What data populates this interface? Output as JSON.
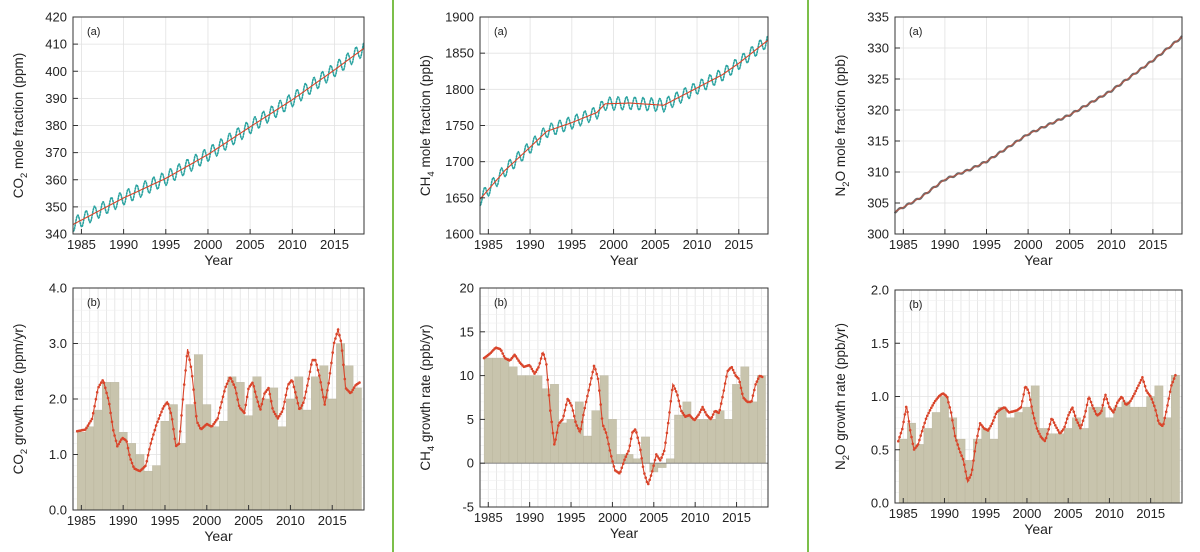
{
  "colors": {
    "divider": "#7cbf4a",
    "monthly": "#2aa3a0",
    "trend": "#d9452b",
    "bar": "#c8c4ad",
    "bar_edge": "#b7b29a",
    "grid": "#e2e2e2",
    "n2o_line": "#6e6e6e"
  },
  "chart_data": [
    {
      "id": "co2-a",
      "type": "line",
      "panel": "(a)",
      "xlabel": "Year",
      "ylabel_parts": [
        "CO",
        "2",
        " mole fraction (ppm)"
      ],
      "xlim": [
        1984,
        2018.5
      ],
      "ylim": [
        340,
        420
      ],
      "xticks": [
        1985,
        1990,
        1995,
        2000,
        2005,
        2010,
        2015
      ],
      "yticks": [
        340,
        350,
        360,
        370,
        380,
        390,
        400,
        410,
        420
      ],
      "trend_points": [
        [
          1984,
          343.5
        ],
        [
          1990,
          353.3
        ],
        [
          1995,
          360.5
        ],
        [
          2000,
          369.3
        ],
        [
          2005,
          379.5
        ],
        [
          2010,
          389.5
        ],
        [
          2015,
          400.5
        ],
        [
          2018.5,
          408.5
        ]
      ],
      "seasonal_amplitude": 2.6
    },
    {
      "id": "ch4-a",
      "type": "line",
      "panel": "(a)",
      "xlabel": "Year",
      "ylabel_parts": [
        "CH",
        "4",
        " mole fraction (ppb)"
      ],
      "xlim": [
        1984,
        2018.5
      ],
      "ylim": [
        1600,
        1900
      ],
      "xticks": [
        1985,
        1990,
        1995,
        2000,
        2005,
        2010,
        2015
      ],
      "yticks": [
        1600,
        1650,
        1700,
        1750,
        1800,
        1850,
        1900
      ],
      "trend_points": [
        [
          1984,
          1648
        ],
        [
          1987,
          1688
        ],
        [
          1990,
          1720
        ],
        [
          1992,
          1742
        ],
        [
          1995,
          1754
        ],
        [
          1998,
          1768
        ],
        [
          1999,
          1780
        ],
        [
          2002,
          1781
        ],
        [
          2006,
          1778
        ],
        [
          2008,
          1790
        ],
        [
          2010,
          1802
        ],
        [
          2013,
          1820
        ],
        [
          2015,
          1836
        ],
        [
          2018.5,
          1868
        ]
      ],
      "seasonal_amplitude": 9
    },
    {
      "id": "n2o-a",
      "type": "line",
      "panel": "(a)",
      "xlabel": "Year",
      "ylabel_parts": [
        "N",
        "2",
        "O mole fraction (ppb)"
      ],
      "xlim": [
        1984,
        2018.5
      ],
      "ylim": [
        300,
        335
      ],
      "xticks": [
        1985,
        1990,
        1995,
        2000,
        2005,
        2010,
        2015
      ],
      "yticks": [
        300,
        305,
        310,
        315,
        320,
        325,
        330,
        335
      ],
      "trend_points": [
        [
          1984,
          303.6
        ],
        [
          1987,
          305.8
        ],
        [
          1990,
          308.8
        ],
        [
          1993,
          310.4
        ],
        [
          1995,
          311.7
        ],
        [
          2000,
          316.1
        ],
        [
          2005,
          319.2
        ],
        [
          2010,
          323.1
        ],
        [
          2015,
          328.0
        ],
        [
          2018.5,
          331.8
        ]
      ],
      "seasonal_amplitude": 0.15
    },
    {
      "id": "co2-b",
      "type": "bar",
      "panel": "(b)",
      "xlabel": "Year",
      "ylabel_parts": [
        "CO",
        "2",
        " growth rate (ppm/yr)"
      ],
      "xlim": [
        1984,
        2018.8
      ],
      "ylim": [
        0,
        4
      ],
      "xticks": [
        1985,
        1990,
        1995,
        2000,
        2005,
        2010,
        2015
      ],
      "yticks": [
        0,
        1,
        2,
        3,
        4
      ],
      "ytick_labels": [
        "0.0",
        "1.0",
        "2.0",
        "3.0",
        "4.0"
      ],
      "years": [
        1984,
        1985,
        1986,
        1987,
        1988,
        1989,
        1990,
        1991,
        1992,
        1993,
        1994,
        1995,
        1996,
        1997,
        1998,
        1999,
        2000,
        2001,
        2002,
        2003,
        2004,
        2005,
        2006,
        2007,
        2008,
        2009,
        2010,
        2011,
        2012,
        2013,
        2014,
        2015,
        2016,
        2017
      ],
      "annual_values": [
        1.4,
        1.5,
        1.8,
        2.3,
        2.3,
        1.4,
        1.2,
        1.0,
        0.7,
        0.8,
        1.6,
        1.9,
        1.2,
        1.9,
        2.8,
        1.9,
        1.5,
        1.6,
        2.4,
        2.3,
        1.7,
        2.4,
        2.0,
        2.2,
        1.5,
        2.0,
        2.4,
        1.8,
        2.4,
        2.6,
        2.0,
        3.0,
        2.6,
        2.2
      ],
      "rate_points": [
        [
          1984.5,
          1.42
        ],
        [
          1985.5,
          1.45
        ],
        [
          1986.3,
          1.65
        ],
        [
          1987.0,
          2.2
        ],
        [
          1987.6,
          2.35
        ],
        [
          1988.3,
          1.95
        ],
        [
          1988.8,
          1.45
        ],
        [
          1989.3,
          1.15
        ],
        [
          1989.9,
          1.3
        ],
        [
          1990.4,
          1.25
        ],
        [
          1990.8,
          0.95
        ],
        [
          1991.3,
          0.75
        ],
        [
          1992.0,
          0.7
        ],
        [
          1992.7,
          0.8
        ],
        [
          1993.3,
          1.2
        ],
        [
          1994.0,
          1.55
        ],
        [
          1994.8,
          1.85
        ],
        [
          1995.3,
          1.95
        ],
        [
          1995.8,
          1.7
        ],
        [
          1996.3,
          1.15
        ],
        [
          1996.7,
          1.2
        ],
        [
          1997.2,
          2.1
        ],
        [
          1997.7,
          2.9
        ],
        [
          1998.2,
          2.5
        ],
        [
          1998.8,
          1.6
        ],
        [
          1999.3,
          1.45
        ],
        [
          2000.0,
          1.55
        ],
        [
          2000.6,
          1.5
        ],
        [
          2001.3,
          1.65
        ],
        [
          2002.2,
          2.2
        ],
        [
          2002.8,
          2.4
        ],
        [
          2003.4,
          2.2
        ],
        [
          2003.9,
          1.85
        ],
        [
          2004.5,
          1.75
        ],
        [
          2005.0,
          2.2
        ],
        [
          2005.5,
          2.3
        ],
        [
          2006.0,
          2.0
        ],
        [
          2006.4,
          1.8
        ],
        [
          2006.9,
          2.1
        ],
        [
          2007.4,
          2.2
        ],
        [
          2007.9,
          1.8
        ],
        [
          2008.5,
          1.65
        ],
        [
          2009.1,
          1.8
        ],
        [
          2009.7,
          2.25
        ],
        [
          2010.2,
          2.35
        ],
        [
          2010.7,
          2.05
        ],
        [
          2011.1,
          1.8
        ],
        [
          2011.6,
          1.95
        ],
        [
          2012.1,
          2.3
        ],
        [
          2012.6,
          2.7
        ],
        [
          2013.0,
          2.7
        ],
        [
          2013.5,
          2.4
        ],
        [
          2014.1,
          1.9
        ],
        [
          2014.6,
          2.3
        ],
        [
          2015.2,
          3.0
        ],
        [
          2015.7,
          3.25
        ],
        [
          2016.1,
          3.0
        ],
        [
          2016.6,
          2.2
        ],
        [
          2017.2,
          2.1
        ],
        [
          2017.8,
          2.25
        ],
        [
          2018.3,
          2.3
        ]
      ]
    },
    {
      "id": "ch4-b",
      "type": "bar",
      "panel": "(b)",
      "xlabel": "Year",
      "ylabel_parts": [
        "CH",
        "4",
        " growth rate (ppb/yr)"
      ],
      "xlim": [
        1984,
        2018.8
      ],
      "ylim": [
        -5,
        20
      ],
      "xticks": [
        1985,
        1990,
        1995,
        2000,
        2005,
        2010,
        2015
      ],
      "yticks": [
        -5,
        0,
        5,
        10,
        15,
        20
      ],
      "years": [
        1984,
        1985,
        1986,
        1987,
        1988,
        1989,
        1990,
        1991,
        1992,
        1993,
        1994,
        1995,
        1996,
        1997,
        1998,
        1999,
        2000,
        2001,
        2002,
        2003,
        2004,
        2005,
        2006,
        2007,
        2008,
        2009,
        2010,
        2011,
        2012,
        2013,
        2014,
        2015,
        2016,
        2017
      ],
      "annual_values": [
        12,
        12,
        12,
        11,
        10,
        10,
        10,
        8.5,
        9,
        4.6,
        5,
        7,
        3.1,
        6,
        10,
        5,
        1,
        1,
        0.5,
        3,
        -1,
        -0.5,
        0.5,
        5.5,
        7,
        5,
        5,
        5,
        6,
        5,
        9,
        11,
        7,
        10
      ],
      "rate_points": [
        [
          1984.5,
          12.0
        ],
        [
          1985.2,
          12.5
        ],
        [
          1985.9,
          13.2
        ],
        [
          1986.5,
          13.0
        ],
        [
          1987.0,
          12.0
        ],
        [
          1987.6,
          11.7
        ],
        [
          1988.2,
          12.4
        ],
        [
          1988.8,
          11.5
        ],
        [
          1989.3,
          11.0
        ],
        [
          1990.0,
          11.2
        ],
        [
          1990.6,
          10.2
        ],
        [
          1991.1,
          11.0
        ],
        [
          1991.6,
          12.7
        ],
        [
          1992.0,
          11.5
        ],
        [
          1992.5,
          6.0
        ],
        [
          1993.0,
          2.0
        ],
        [
          1993.5,
          4.5
        ],
        [
          1994.0,
          5.0
        ],
        [
          1994.6,
          7.4
        ],
        [
          1995.1,
          6.5
        ],
        [
          1995.6,
          4.5
        ],
        [
          1996.1,
          3.5
        ],
        [
          1996.7,
          6.5
        ],
        [
          1997.3,
          9.0
        ],
        [
          1997.8,
          11.2
        ],
        [
          1998.3,
          9.5
        ],
        [
          1998.8,
          4.5
        ],
        [
          1999.3,
          3.3
        ],
        [
          1999.8,
          1.0
        ],
        [
          2000.3,
          -0.8
        ],
        [
          2000.9,
          -1.2
        ],
        [
          2001.5,
          0.5
        ],
        [
          2002.0,
          1.5
        ],
        [
          2002.4,
          3.5
        ],
        [
          2002.8,
          3.9
        ],
        [
          2003.3,
          2.0
        ],
        [
          2003.8,
          -1.0
        ],
        [
          2004.3,
          -2.5
        ],
        [
          2004.8,
          -1.0
        ],
        [
          2005.3,
          1.0
        ],
        [
          2005.8,
          0.3
        ],
        [
          2006.3,
          1.5
        ],
        [
          2006.8,
          5.0
        ],
        [
          2007.3,
          9.0
        ],
        [
          2007.8,
          8.0
        ],
        [
          2008.3,
          6.0
        ],
        [
          2008.8,
          5.3
        ],
        [
          2009.3,
          5.5
        ],
        [
          2009.9,
          4.9
        ],
        [
          2010.4,
          5.5
        ],
        [
          2010.9,
          6.4
        ],
        [
          2011.4,
          5.5
        ],
        [
          2011.9,
          5.0
        ],
        [
          2012.4,
          6.0
        ],
        [
          2012.9,
          5.7
        ],
        [
          2013.4,
          8.0
        ],
        [
          2013.9,
          10.5
        ],
        [
          2014.4,
          11.0
        ],
        [
          2014.9,
          10.0
        ],
        [
          2015.3,
          9.6
        ],
        [
          2015.8,
          7.5
        ],
        [
          2016.3,
          7.0
        ],
        [
          2016.8,
          7.0
        ],
        [
          2017.3,
          9.0
        ],
        [
          2017.8,
          10.0
        ],
        [
          2018.2,
          9.8
        ]
      ]
    },
    {
      "id": "n2o-b",
      "type": "bar",
      "panel": "(b)",
      "xlabel": "Year",
      "ylabel_parts": [
        "N",
        "2",
        "O growth rate (ppb/yr)"
      ],
      "xlim": [
        1984,
        2018.8
      ],
      "ylim": [
        0,
        2
      ],
      "xticks": [
        1985,
        1990,
        1995,
        2000,
        2005,
        2010,
        2015
      ],
      "yticks": [
        0,
        0.5,
        1,
        1.5,
        2
      ],
      "ytick_labels": [
        "0.0",
        "0.5",
        "1.0",
        "1.5",
        "2.0"
      ],
      "years": [
        1984,
        1985,
        1986,
        1987,
        1988,
        1989,
        1990,
        1991,
        1992,
        1993,
        1994,
        1995,
        1996,
        1997,
        1998,
        1999,
        2000,
        2001,
        2002,
        2003,
        2004,
        2005,
        2006,
        2007,
        2008,
        2009,
        2010,
        2011,
        2012,
        2013,
        2014,
        2015,
        2016,
        2017
      ],
      "annual_values": [
        0.6,
        0.75,
        0.55,
        0.7,
        0.85,
        1.0,
        0.8,
        0.6,
        0.4,
        0.6,
        0.7,
        0.6,
        0.9,
        0.8,
        0.85,
        0.9,
        1.1,
        0.7,
        0.65,
        0.65,
        0.7,
        0.8,
        0.7,
        0.9,
        0.9,
        0.8,
        0.9,
        0.95,
        0.9,
        0.9,
        1.0,
        1.1,
        0.8,
        1.2
      ],
      "rate_points": [
        [
          1984.4,
          0.58
        ],
        [
          1984.9,
          0.7
        ],
        [
          1985.4,
          0.92
        ],
        [
          1985.8,
          0.7
        ],
        [
          1986.3,
          0.5
        ],
        [
          1986.8,
          0.55
        ],
        [
          1987.3,
          0.68
        ],
        [
          1987.8,
          0.8
        ],
        [
          1988.3,
          0.88
        ],
        [
          1988.8,
          0.95
        ],
        [
          1989.3,
          1.0
        ],
        [
          1989.8,
          1.03
        ],
        [
          1990.3,
          1.0
        ],
        [
          1990.8,
          0.85
        ],
        [
          1991.3,
          0.62
        ],
        [
          1991.8,
          0.5
        ],
        [
          1992.3,
          0.4
        ],
        [
          1992.8,
          0.2
        ],
        [
          1993.3,
          0.28
        ],
        [
          1993.8,
          0.55
        ],
        [
          1994.3,
          0.75
        ],
        [
          1994.8,
          0.7
        ],
        [
          1995.3,
          0.68
        ],
        [
          1995.8,
          0.75
        ],
        [
          1996.3,
          0.85
        ],
        [
          1996.8,
          0.88
        ],
        [
          1997.3,
          0.9
        ],
        [
          1997.8,
          0.85
        ],
        [
          1998.3,
          0.86
        ],
        [
          1998.8,
          0.87
        ],
        [
          1999.3,
          0.9
        ],
        [
          1999.8,
          1.1
        ],
        [
          2000.2,
          1.05
        ],
        [
          2000.7,
          0.85
        ],
        [
          2001.2,
          0.7
        ],
        [
          2001.7,
          0.62
        ],
        [
          2002.2,
          0.58
        ],
        [
          2002.6,
          0.68
        ],
        [
          2003.0,
          0.8
        ],
        [
          2003.5,
          0.72
        ],
        [
          2004.0,
          0.65
        ],
        [
          2004.5,
          0.7
        ],
        [
          2005.0,
          0.82
        ],
        [
          2005.5,
          0.9
        ],
        [
          2006.0,
          0.78
        ],
        [
          2006.5,
          0.7
        ],
        [
          2007.0,
          0.82
        ],
        [
          2007.5,
          1.0
        ],
        [
          2008.0,
          0.9
        ],
        [
          2008.5,
          0.82
        ],
        [
          2009.0,
          0.85
        ],
        [
          2009.5,
          1.02
        ],
        [
          2010.0,
          0.9
        ],
        [
          2010.5,
          0.85
        ],
        [
          2011.0,
          0.95
        ],
        [
          2011.5,
          1.0
        ],
        [
          2012.0,
          0.92
        ],
        [
          2012.5,
          0.95
        ],
        [
          2013.0,
          1.02
        ],
        [
          2013.5,
          1.1
        ],
        [
          2014.0,
          1.18
        ],
        [
          2014.5,
          1.05
        ],
        [
          2015.0,
          1.0
        ],
        [
          2015.5,
          0.9
        ],
        [
          2016.0,
          0.75
        ],
        [
          2016.5,
          0.72
        ],
        [
          2017.0,
          0.9
        ],
        [
          2017.5,
          1.1
        ],
        [
          2018.0,
          1.2
        ]
      ]
    }
  ]
}
